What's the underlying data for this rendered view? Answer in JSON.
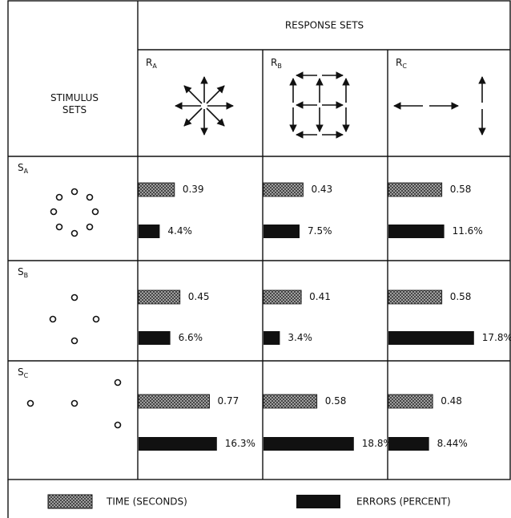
{
  "header": {
    "stimulus_sets": [
      "STIMULUS",
      "SETS"
    ],
    "response_sets": "RESPONSE SETS"
  },
  "response_sets": [
    {
      "letter": "R",
      "sub": "A"
    },
    {
      "letter": "R",
      "sub": "B"
    },
    {
      "letter": "R",
      "sub": "C"
    }
  ],
  "stimulus_sets": [
    {
      "letter": "S",
      "sub": "A"
    },
    {
      "letter": "S",
      "sub": "B"
    },
    {
      "letter": "S",
      "sub": "C"
    }
  ],
  "cells": [
    [
      {
        "time": 0.39,
        "errors": 4.4,
        "errors_label": "4.4%"
      },
      {
        "time": 0.43,
        "errors": 7.5,
        "errors_label": "7.5%"
      },
      {
        "time": 0.58,
        "errors": 11.6,
        "errors_label": "11.6%"
      }
    ],
    [
      {
        "time": 0.45,
        "errors": 6.6,
        "errors_label": "6.6%"
      },
      {
        "time": 0.41,
        "errors": 3.4,
        "errors_label": "3.4%"
      },
      {
        "time": 0.58,
        "errors": 17.8,
        "errors_label": "17.8%"
      }
    ],
    [
      {
        "time": 0.77,
        "errors": 16.3,
        "errors_label": "16.3%"
      },
      {
        "time": 0.58,
        "errors": 18.8,
        "errors_label": "18.8%"
      },
      {
        "time": 0.48,
        "errors": 8.44,
        "errors_label": "8.44%"
      }
    ]
  ],
  "legend": {
    "time": "TIME (SECONDS)",
    "errors": "ERRORS (PERCENT)"
  }
}
